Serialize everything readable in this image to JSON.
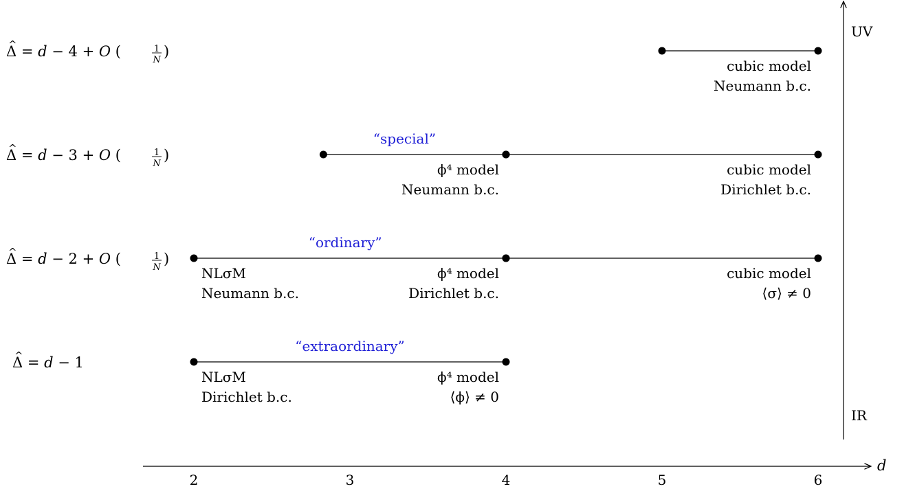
{
  "axis": {
    "d_label": "d",
    "ticks": [
      {
        "value": 2,
        "label": "2"
      },
      {
        "value": 3,
        "label": "3"
      },
      {
        "value": 4,
        "label": "4"
      },
      {
        "value": 5,
        "label": "5"
      },
      {
        "value": 6,
        "label": "6"
      }
    ],
    "uv_label": "UV",
    "ir_label": "IR"
  },
  "rows": [
    {
      "id": "row-d-minus-4",
      "dimension_label": "Δ̂ = d − 4 + O(1/N)",
      "dimension": {
        "prefix": "d − 4 + O",
        "has_1_over_N": true
      },
      "phase_name": "",
      "segments": [
        {
          "from_d": 5,
          "to_d": 6,
          "left_labels": [],
          "right_labels": [
            "cubic model",
            "Neumann b.c."
          ]
        }
      ]
    },
    {
      "id": "row-d-minus-3",
      "dimension_label": "Δ̂ = d − 3 + O(1/N)",
      "dimension": {
        "prefix": "d − 3 + O",
        "has_1_over_N": true
      },
      "phase_name": "“special”",
      "phase_name_center_d": 3.35,
      "segments": [
        {
          "from_d": 2.83,
          "to_d": 4,
          "left_labels": [],
          "right_labels": [
            "ϕ⁴ model",
            "Neumann b.c."
          ]
        },
        {
          "from_d": 4,
          "to_d": 6,
          "left_labels": [],
          "right_labels": [
            "cubic model",
            "Dirichlet b.c."
          ]
        }
      ]
    },
    {
      "id": "row-d-minus-2",
      "dimension_label": "Δ̂ = d − 2 + O(1/N)",
      "dimension": {
        "prefix": "d − 2 + O",
        "has_1_over_N": true
      },
      "phase_name": "“ordinary”",
      "phase_name_center_d": 2.97,
      "segments": [
        {
          "from_d": 2,
          "to_d": 4,
          "left_labels": [
            "NLσM",
            "Neumann b.c."
          ],
          "right_labels": [
            "ϕ⁴ model",
            "Dirichlet b.c."
          ]
        },
        {
          "from_d": 4,
          "to_d": 6,
          "left_labels": [],
          "right_labels": [
            "cubic model",
            "⟨σ⟩ ≠ 0"
          ]
        }
      ]
    },
    {
      "id": "row-d-minus-1",
      "dimension_label": "Δ̂ = d − 1",
      "dimension": {
        "prefix": "d − 1",
        "has_1_over_N": false
      },
      "phase_name": "“extraordinary”",
      "phase_name_center_d": 3.0,
      "segments": [
        {
          "from_d": 2,
          "to_d": 4,
          "left_labels": [
            "NLσM",
            "Dirichlet b.c."
          ],
          "right_labels": [
            "ϕ⁴ model",
            "⟨ϕ⟩ ≠ 0"
          ]
        }
      ]
    }
  ]
}
